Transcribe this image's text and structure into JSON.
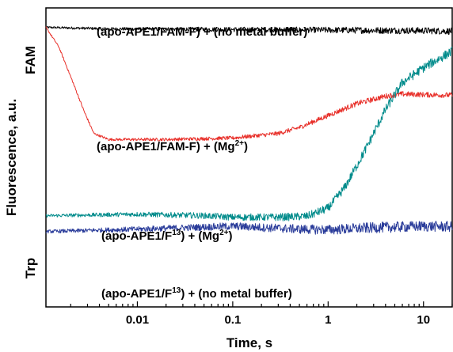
{
  "chart_data": {
    "type": "line",
    "xlabel": "Time, s",
    "ylabel": "Fluorescence, a.u.",
    "x_scale": "log",
    "xlim": [
      0.0011,
      20
    ],
    "ylim": [
      0,
      1
    ],
    "y_ticks_numeric": false,
    "grid": false,
    "x_ticks": [
      {
        "value": 0.01,
        "label": "0.01"
      },
      {
        "value": 0.1,
        "label": "0.1"
      },
      {
        "value": 1,
        "label": "1"
      },
      {
        "value": 10,
        "label": "10"
      }
    ],
    "side_labels": {
      "top": "FAM",
      "bottom": "Trp"
    },
    "series": [
      {
        "color": "#000000",
        "noise": 0.005,
        "points": [
          [
            0.0011,
            0.935
          ],
          [
            0.005,
            0.93
          ],
          [
            0.1,
            0.928
          ],
          [
            1,
            0.926
          ],
          [
            10,
            0.924
          ],
          [
            20,
            0.922
          ]
        ]
      },
      {
        "color": "#e8302a",
        "noise": 0.004,
        "points": [
          [
            0.0011,
            0.935
          ],
          [
            0.0015,
            0.87
          ],
          [
            0.002,
            0.77
          ],
          [
            0.0028,
            0.65
          ],
          [
            0.0035,
            0.58
          ],
          [
            0.005,
            0.56
          ],
          [
            0.02,
            0.56
          ],
          [
            0.1,
            0.565
          ],
          [
            0.3,
            0.58
          ],
          [
            0.5,
            0.6
          ],
          [
            1,
            0.64
          ],
          [
            2,
            0.68
          ],
          [
            4,
            0.705
          ],
          [
            6,
            0.712
          ],
          [
            10,
            0.71
          ],
          [
            20,
            0.708
          ]
        ]
      },
      {
        "color": "#008b8b",
        "noise": 0.007,
        "points": [
          [
            0.0011,
            0.305
          ],
          [
            0.01,
            0.31
          ],
          [
            0.05,
            0.305
          ],
          [
            0.1,
            0.3
          ],
          [
            0.3,
            0.3
          ],
          [
            0.6,
            0.303
          ],
          [
            1,
            0.33
          ],
          [
            1.5,
            0.4
          ],
          [
            2.5,
            0.53
          ],
          [
            4,
            0.66
          ],
          [
            6,
            0.75
          ],
          [
            10,
            0.8
          ],
          [
            20,
            0.855
          ]
        ]
      },
      {
        "color": "#2a3c9a",
        "noise": 0.008,
        "points": [
          [
            0.0011,
            0.252
          ],
          [
            0.01,
            0.26
          ],
          [
            0.1,
            0.27
          ],
          [
            0.5,
            0.26
          ],
          [
            1,
            0.258
          ],
          [
            3,
            0.265
          ],
          [
            10,
            0.27
          ],
          [
            20,
            0.268
          ]
        ]
      }
    ],
    "annotations": [
      {
        "id": "black",
        "parts": [
          {
            "t": "(apo-APE1/FAM-F) + (no metal buffer)"
          }
        ]
      },
      {
        "id": "red",
        "parts": [
          {
            "t": "(apo-APE1/FAM-F) + (Mg"
          },
          {
            "t": "2+",
            "sup": true
          },
          {
            "t": ")"
          }
        ]
      },
      {
        "id": "teal",
        "parts": [
          {
            "t": "(apo-APE1/F"
          },
          {
            "t": "13",
            "sup": true
          },
          {
            "t": ") + (Mg"
          },
          {
            "t": "2+",
            "sup": true
          },
          {
            "t": ")"
          }
        ]
      },
      {
        "id": "blue",
        "parts": [
          {
            "t": "(apo-APE1/F"
          },
          {
            "t": "13",
            "sup": true
          },
          {
            "t": ") + (no metal buffer)"
          }
        ]
      }
    ]
  }
}
